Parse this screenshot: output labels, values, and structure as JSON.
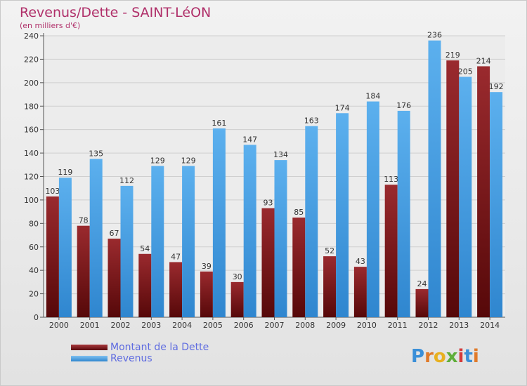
{
  "title": "Revenus/Dette - SAINT-LéON",
  "subtitle": "(en milliers d'€)",
  "brand": "Proxiti",
  "colors": {
    "dette": "#7a1418",
    "revenus": "#4aa3e6",
    "grid": "#cfcfcf",
    "title": "#b0306a"
  },
  "chart_data": {
    "type": "bar",
    "title": "Revenus/Dette - SAINT-LéON",
    "subtitle": "(en milliers d'€)",
    "categories": [
      "2000",
      "2001",
      "2002",
      "2003",
      "2004",
      "2005",
      "2006",
      "2007",
      "2008",
      "2009",
      "2010",
      "2011",
      "2012",
      "2013",
      "2014"
    ],
    "series": [
      {
        "name": "Montant de la Dette",
        "color": "#7a1418",
        "values": [
          103,
          78,
          67,
          54,
          47,
          39,
          30,
          93,
          85,
          52,
          43,
          113,
          24,
          219,
          214
        ]
      },
      {
        "name": "Revenus",
        "color": "#4aa3e6",
        "values": [
          119,
          135,
          112,
          129,
          129,
          161,
          147,
          134,
          163,
          174,
          184,
          176,
          236,
          205,
          192
        ]
      }
    ],
    "ylim": [
      0,
      240
    ],
    "yticks": [
      0,
      20,
      40,
      60,
      80,
      100,
      120,
      140,
      160,
      180,
      200,
      220,
      240
    ],
    "grid": true,
    "legend_position": "bottom-left"
  }
}
